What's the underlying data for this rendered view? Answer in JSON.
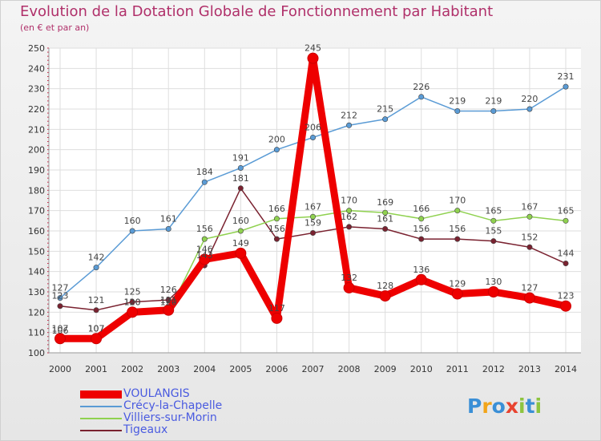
{
  "header": {
    "title": "Evolution de la Dotation Globale de Fonctionnement par Habitant",
    "subtitle": "(en € et par an)"
  },
  "brand": {
    "text": "Proxiti",
    "letters": [
      "P",
      "r",
      "o",
      "x",
      "i",
      "t",
      "i"
    ],
    "colors": [
      "#3a8fd6",
      "#f2a51a",
      "#3a8fd6",
      "#e8432f",
      "#8dc43f",
      "#3a8fd6",
      "#8dc43f"
    ]
  },
  "chart_data": {
    "type": "line",
    "title": "Evolution de la Dotation Globale de Fonctionnement par Habitant",
    "subtitle": "(en € et par an)",
    "xlabel": "",
    "ylabel": "",
    "ylim": [
      100,
      250
    ],
    "yticks": [
      100,
      110,
      120,
      130,
      140,
      150,
      160,
      170,
      180,
      190,
      200,
      210,
      220,
      230,
      240,
      250
    ],
    "grid": true,
    "legend": "bottom-left",
    "categories": [
      "2000",
      "2001",
      "2002",
      "2003",
      "2004",
      "2005",
      "2006",
      "2007",
      "2008",
      "2009",
      "2010",
      "2011",
      "2012",
      "2013",
      "2014"
    ],
    "series": [
      {
        "name": "VOULANGIS",
        "color": "#ee0000",
        "values": [
          107,
          107,
          120,
          121,
          146,
          149,
          117,
          245,
          132,
          128,
          136,
          129,
          130,
          127,
          123
        ],
        "labels": [
          "107",
          "107",
          "120",
          "121",
          "146",
          "149",
          "117",
          "245",
          "132",
          "128",
          "136",
          "129",
          "130",
          "127",
          "123"
        ]
      },
      {
        "name": "Crécy-la-Chapelle",
        "color": "#5a9bd5",
        "values": [
          127,
          142,
          160,
          161,
          184,
          191,
          200,
          206,
          212,
          215,
          226,
          219,
          219,
          220,
          231
        ],
        "labels": [
          "127",
          "142",
          "160",
          "161",
          "184",
          "191",
          "200",
          "206",
          "212",
          "215",
          "226",
          "219",
          "219",
          "220",
          "231"
        ]
      },
      {
        "name": "Villiers-sur-Morin",
        "color": "#8fd14f",
        "values": [
          106,
          107,
          120,
          120,
          156,
          160,
          166,
          167,
          170,
          169,
          166,
          170,
          165,
          167,
          165
        ],
        "labels": [
          "106",
          "107",
          "120",
          "120",
          "156",
          "160",
          "166",
          "167",
          "170",
          "169",
          "166",
          "170",
          "165",
          "167",
          "165"
        ]
      },
      {
        "name": "Tigeaux",
        "color": "#7a2230",
        "values": [
          123,
          121,
          125,
          126,
          143,
          181,
          156,
          159,
          162,
          161,
          156,
          156,
          155,
          152,
          144
        ],
        "labels": [
          "123",
          "121",
          "125",
          "126",
          "143",
          "181",
          "156",
          "159",
          "162",
          "161",
          "156",
          "156",
          "155",
          "152",
          "144"
        ]
      }
    ]
  }
}
